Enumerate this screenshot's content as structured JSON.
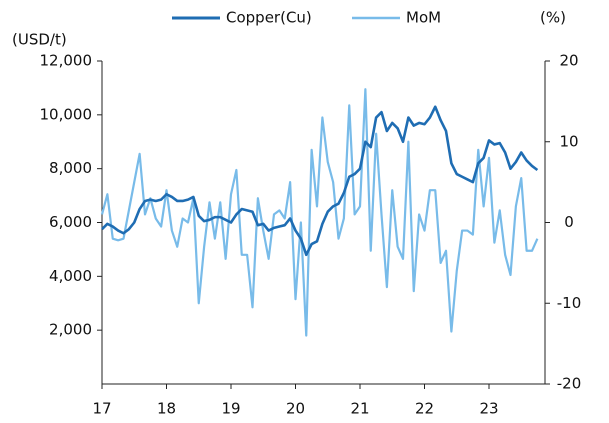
{
  "chart_data": {
    "type": "line",
    "categories": [
      "17",
      null,
      null,
      null,
      null,
      null,
      null,
      null,
      null,
      null,
      null,
      null,
      "18",
      null,
      null,
      null,
      null,
      null,
      null,
      null,
      null,
      null,
      null,
      null,
      "19",
      null,
      null,
      null,
      null,
      null,
      null,
      null,
      null,
      null,
      null,
      null,
      "20",
      null,
      null,
      null,
      null,
      null,
      null,
      null,
      null,
      null,
      null,
      null,
      "21",
      null,
      null,
      null,
      null,
      null,
      null,
      null,
      null,
      null,
      null,
      null,
      "22",
      null,
      null,
      null,
      null,
      null,
      null,
      null,
      null,
      null,
      null,
      null,
      "23",
      null,
      null,
      null,
      null,
      null,
      null,
      null,
      null,
      null
    ],
    "series": [
      {
        "name": "Copper(Cu)",
        "color": "#1f6db3",
        "values": [
          5750,
          5950,
          5850,
          5700,
          5600,
          5750,
          6000,
          6500,
          6800,
          6850,
          6800,
          6850,
          7050,
          6950,
          6800,
          6800,
          6850,
          6950,
          6250,
          6050,
          6100,
          6200,
          6200,
          6100,
          6000,
          6300,
          6500,
          6450,
          6400,
          5900,
          5950,
          5700,
          5800,
          5850,
          5900,
          6150,
          5700,
          5400,
          4800,
          5200,
          5300,
          5950,
          6400,
          6600,
          6700,
          7100,
          7700,
          7800,
          8000,
          9000,
          8800,
          9900,
          10100,
          9400,
          9700,
          9500,
          9000,
          9900,
          9600,
          9700,
          9650,
          9900,
          10300,
          9800,
          9400,
          8200,
          7800,
          7700,
          7600,
          7500,
          8200,
          8400,
          9050,
          8900,
          8950,
          8600,
          8000,
          8250,
          8600,
          8300,
          8100,
          7950
        ]
      },
      {
        "name": "MoM",
        "color": "#78bbe9",
        "axis": "y2",
        "values": [
          1,
          3.5,
          -2,
          -2.2,
          -2,
          1.5,
          5,
          8.5,
          1,
          3,
          0.5,
          -0.5,
          4,
          -1,
          -3,
          0.5,
          0,
          3,
          -10,
          -3,
          2.5,
          -2,
          2.5,
          -4.5,
          3.5,
          6.5,
          -4,
          -4,
          -10.5,
          3,
          -1,
          -4.5,
          1,
          1.5,
          0.5,
          5,
          -9.5,
          0,
          -14,
          9,
          2,
          13,
          7.5,
          5,
          -2,
          0.5,
          14.5,
          1,
          2,
          16.5,
          -3.5,
          11,
          1,
          -8,
          4,
          -3,
          -4.5,
          10,
          -8.5,
          1,
          -1,
          4,
          4,
          -5,
          -3.5,
          -13.5,
          -6,
          -1,
          -1,
          -1.5,
          9,
          2,
          8,
          -2.5,
          1.5,
          -4,
          -6.5,
          2,
          5.5,
          -3.5,
          -3.5,
          -2
        ]
      }
    ],
    "y_label": "(USD/t)",
    "y2_label": "(%)",
    "ylim": [
      0,
      12000
    ],
    "yticks": [
      {
        "value": 2000,
        "label": "2,000"
      },
      {
        "value": 4000,
        "label": "4,000"
      },
      {
        "value": 6000,
        "label": "6,000"
      },
      {
        "value": 8000,
        "label": "8,000"
      },
      {
        "value": 10000,
        "label": "10,000"
      },
      {
        "value": 12000,
        "label": "12,000"
      }
    ],
    "y2lim": [
      -20,
      20
    ],
    "y2ticks": [
      -20,
      -10,
      0,
      10,
      20
    ],
    "grid": false,
    "legend": "top"
  }
}
